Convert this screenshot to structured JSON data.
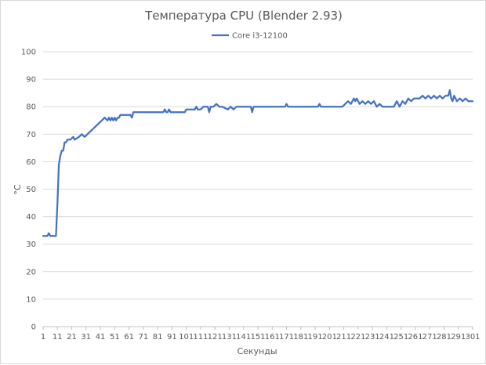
{
  "chart_data": {
    "type": "line",
    "title": "Температура CPU (Blender 2.93)",
    "xlabel": "Секунды",
    "ylabel": "°C",
    "ylim": [
      0,
      100
    ],
    "yticks": [
      0,
      10,
      20,
      30,
      40,
      50,
      60,
      70,
      80,
      90,
      100
    ],
    "xlim": [
      1,
      301
    ],
    "xticks": [
      1,
      11,
      21,
      31,
      41,
      51,
      61,
      71,
      81,
      91,
      101,
      111,
      121,
      131,
      141,
      151,
      161,
      171,
      181,
      191,
      201,
      211,
      221,
      231,
      241,
      251,
      261,
      271,
      281,
      291,
      301
    ],
    "grid": "horizontal",
    "legend": "top",
    "colors": {
      "series": "#4472c4"
    },
    "series": [
      {
        "name": "Core i3-12100",
        "x": [
          1,
          4,
          5,
          6,
          10,
          11,
          12,
          13,
          14,
          15,
          16,
          17,
          18,
          20,
          22,
          23,
          26,
          28,
          30,
          32,
          34,
          36,
          38,
          40,
          42,
          44,
          46,
          47,
          48,
          49,
          50,
          51,
          52,
          53,
          54,
          55,
          56,
          58,
          62,
          63,
          64,
          65,
          85,
          86,
          87,
          88,
          89,
          90,
          91,
          100,
          101,
          107,
          108,
          109,
          111,
          113,
          116,
          117,
          118,
          120,
          122,
          124,
          126,
          130,
          132,
          134,
          136,
          140,
          142,
          146,
          147,
          148,
          149,
          151,
          160,
          170,
          171,
          172,
          190,
          193,
          194,
          195,
          210,
          212,
          214,
          216,
          218,
          219,
          220,
          222,
          224,
          226,
          228,
          230,
          232,
          234,
          236,
          238,
          240,
          242,
          246,
          248,
          250,
          252,
          254,
          256,
          258,
          260,
          264,
          266,
          268,
          270,
          272,
          274,
          276,
          278,
          280,
          282,
          284,
          285,
          286,
          287,
          288,
          290,
          292,
          294,
          296,
          298,
          300,
          301
        ],
        "values": [
          33,
          33,
          34,
          33,
          33,
          45,
          59,
          62,
          64,
          64,
          67,
          67,
          68,
          68,
          69,
          68,
          69,
          70,
          69,
          70,
          71,
          72,
          73,
          74,
          75,
          76,
          75,
          76,
          75,
          76,
          75,
          76,
          75,
          76,
          76,
          77,
          77,
          77,
          77,
          76,
          78,
          78,
          78,
          79,
          78,
          78,
          79,
          78,
          78,
          78,
          79,
          79,
          80,
          79,
          79,
          80,
          80,
          78,
          80,
          80,
          81,
          80,
          80,
          79,
          80,
          79,
          80,
          80,
          80,
          80,
          78,
          80,
          80,
          80,
          80,
          80,
          81,
          80,
          80,
          80,
          81,
          80,
          80,
          81,
          82,
          81,
          83,
          82,
          83,
          81,
          82,
          81,
          82,
          81,
          82,
          80,
          81,
          80,
          80,
          80,
          80,
          82,
          80,
          82,
          81,
          83,
          82,
          83,
          83,
          84,
          83,
          84,
          83,
          84,
          83,
          84,
          83,
          84,
          84,
          86,
          83,
          82,
          84,
          82,
          83,
          82,
          83,
          82,
          82,
          82
        ]
      }
    ]
  }
}
